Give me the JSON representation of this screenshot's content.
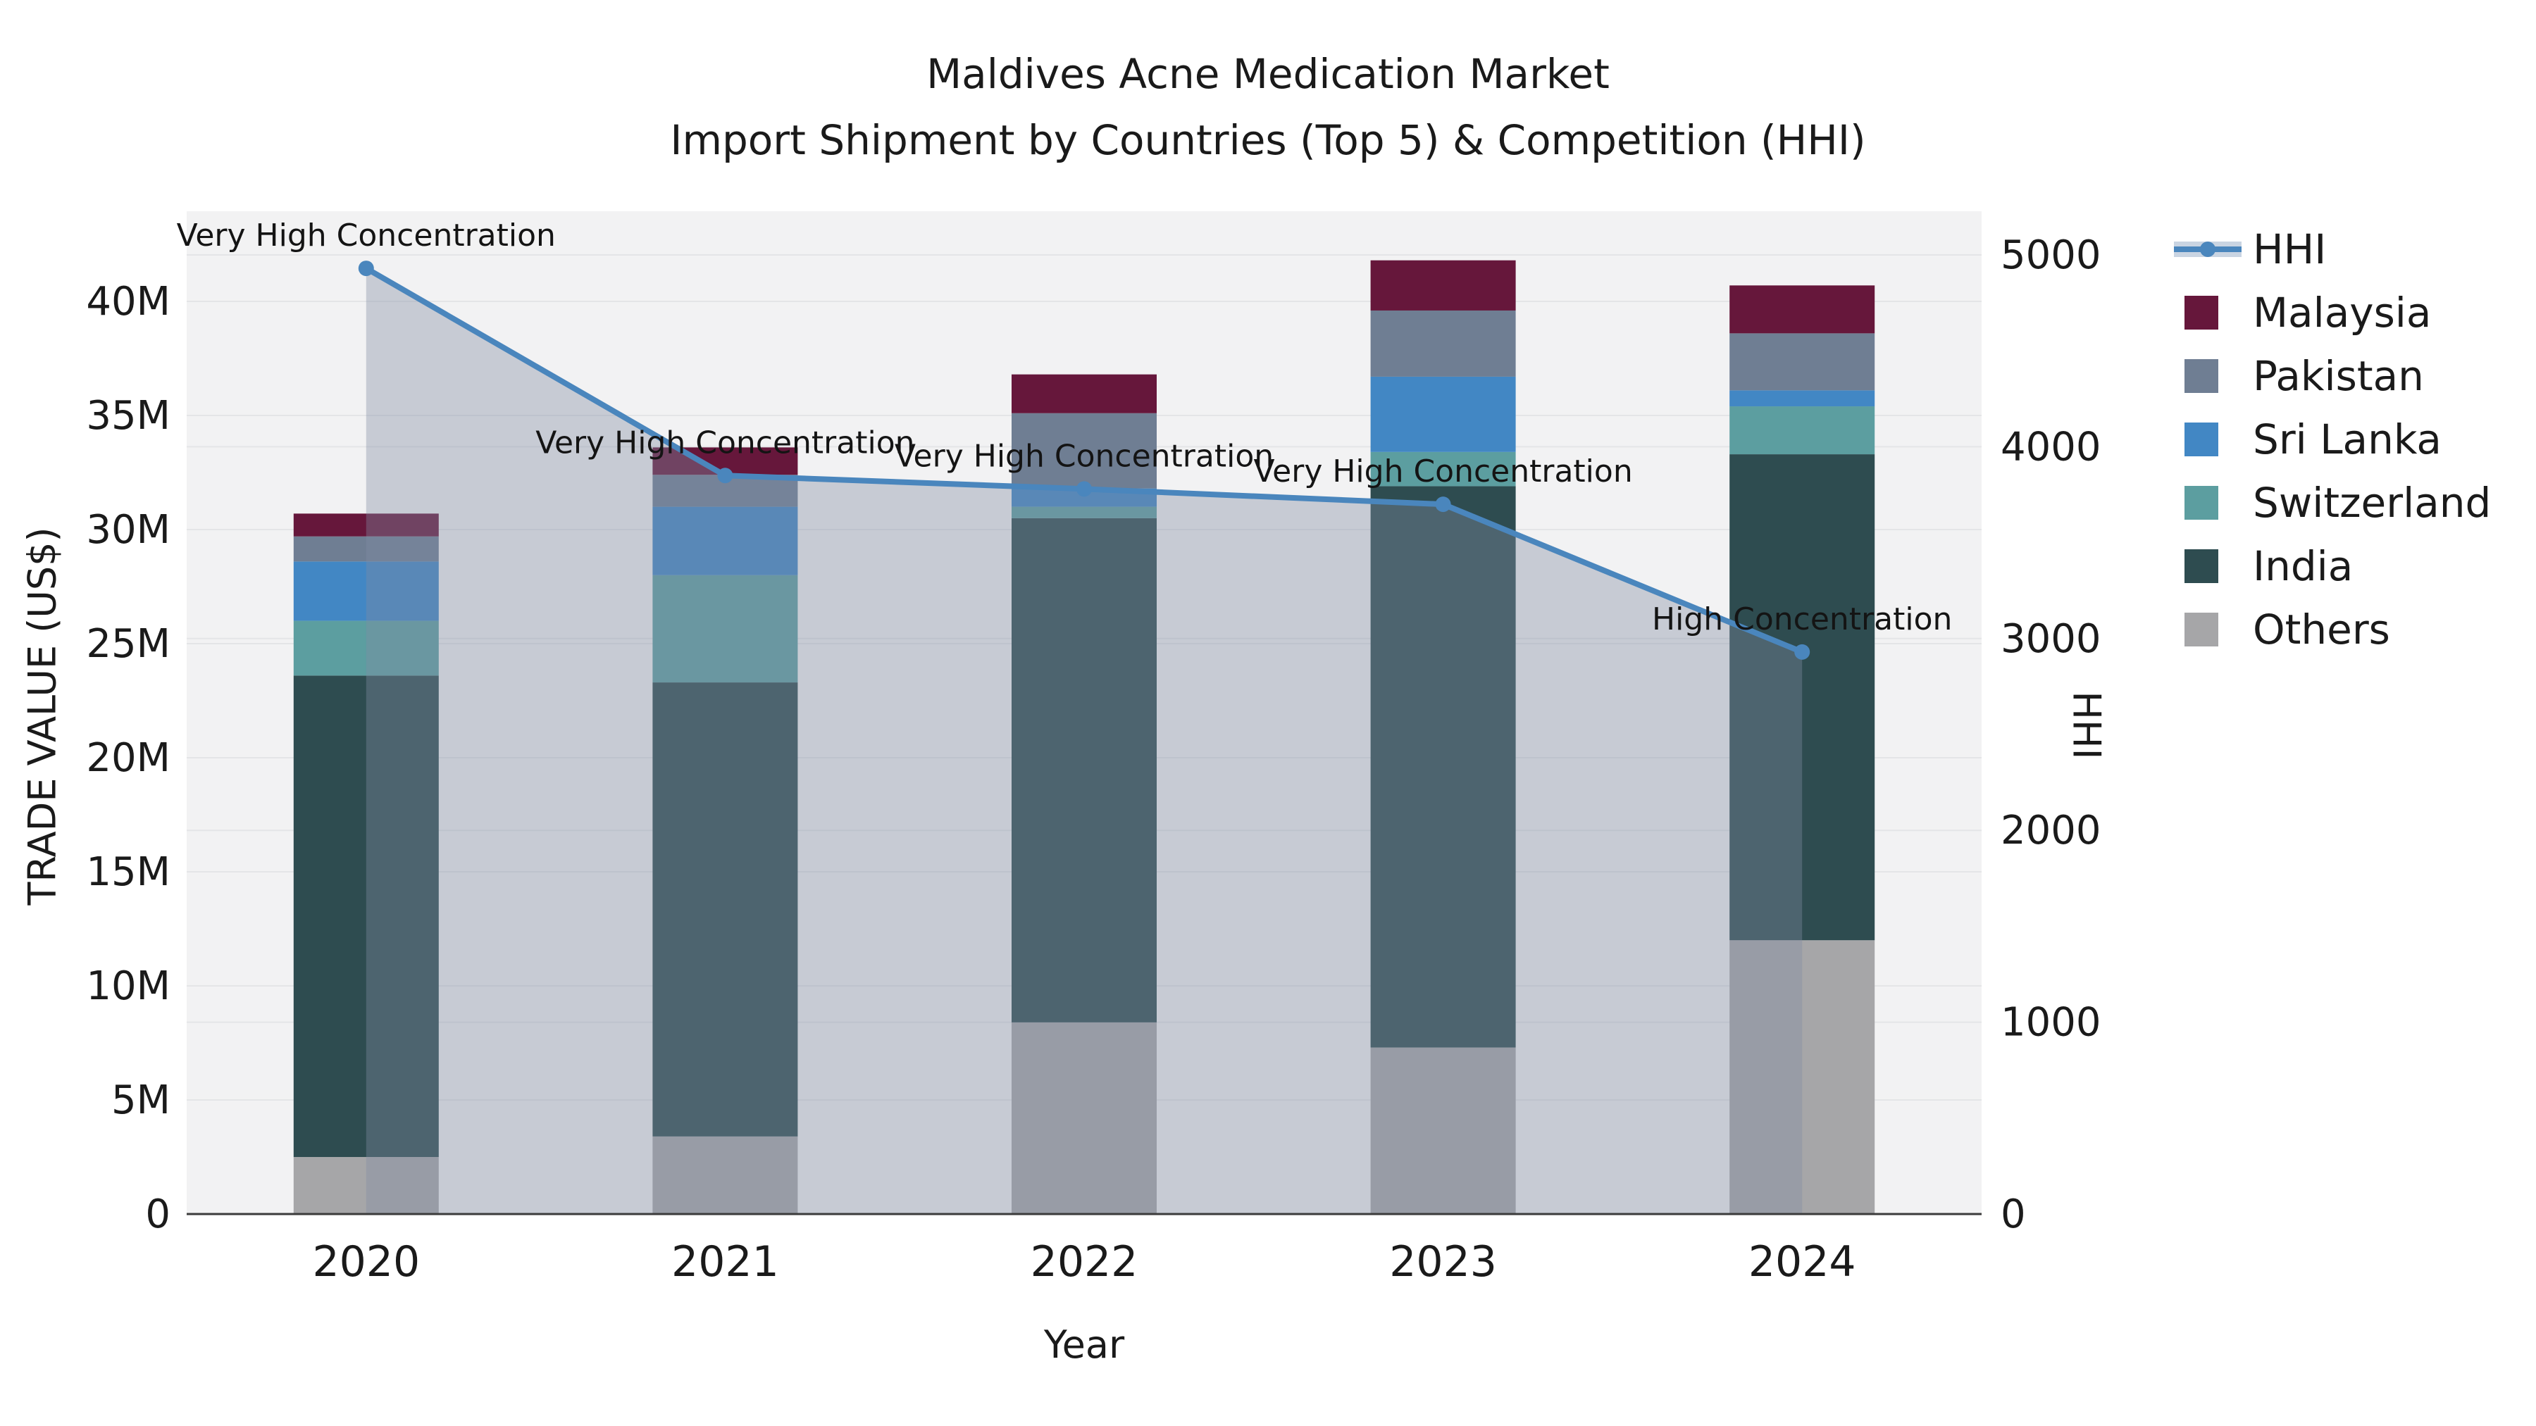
{
  "title": {
    "line1": "Maldives Acne Medication Market",
    "line2": "Import Shipment by Countries (Top 5) & Competition (HHI)"
  },
  "axis_labels": {
    "x": "Year",
    "y_left": "TRADE VALUE (US$)",
    "y_right": "HHI"
  },
  "legend": {
    "items": [
      {
        "label": "HHI",
        "type": "line",
        "color": "#4A86BD",
        "band_color": "#C9D4E2"
      },
      {
        "label": "Malaysia",
        "type": "square",
        "color": "#66173B"
      },
      {
        "label": "Pakistan",
        "type": "square",
        "color": "#6F7E93"
      },
      {
        "label": "Sri Lanka",
        "type": "square",
        "color": "#4287C4"
      },
      {
        "label": "Switzerland",
        "type": "square",
        "color": "#5C9EA0"
      },
      {
        "label": "India",
        "type": "square",
        "color": "#2E4C50"
      },
      {
        "label": "Others",
        "type": "square",
        "color": "#A6A6A8"
      }
    ]
  },
  "chart_data": {
    "type": "bar-line-combo",
    "bar_mode": "stacked",
    "categories": [
      "2020",
      "2021",
      "2022",
      "2023",
      "2024"
    ],
    "bar_value_unit": "million US$",
    "series": [
      {
        "name": "Others",
        "color": "#A6A6A8",
        "values": [
          2.5,
          3.4,
          8.4,
          7.3,
          12.0
        ]
      },
      {
        "name": "India",
        "color": "#2E4C50",
        "values": [
          21.1,
          19.9,
          22.1,
          24.6,
          21.3
        ]
      },
      {
        "name": "Switzerland",
        "color": "#5C9EA0",
        "values": [
          2.4,
          4.7,
          0.5,
          1.5,
          2.1
        ]
      },
      {
        "name": "Sri Lanka",
        "color": "#4287C4",
        "values": [
          2.6,
          3.0,
          0.8,
          3.3,
          0.7
        ]
      },
      {
        "name": "Pakistan",
        "color": "#6F7E93",
        "values": [
          1.1,
          1.4,
          3.3,
          2.9,
          2.5
        ]
      },
      {
        "name": "Malaysia",
        "color": "#66173B",
        "values": [
          1.0,
          1.2,
          1.7,
          2.2,
          2.1
        ]
      }
    ],
    "bar_totals_m": [
      30.7,
      33.6,
      36.8,
      41.8,
      40.7
    ],
    "line_series": {
      "name": "HHI",
      "color": "#4A86BD",
      "area_fill": "rgba(128,140,164,0.38)",
      "values": [
        4930,
        3850,
        3780,
        3700,
        2930
      ]
    },
    "annotations": [
      {
        "category": "2020",
        "text": "Very High Concentration"
      },
      {
        "category": "2021",
        "text": "Very High Concentration"
      },
      {
        "category": "2022",
        "text": "Very High Concentration"
      },
      {
        "category": "2023",
        "text": "Very High Concentration"
      },
      {
        "category": "2024",
        "text": "High Concentration"
      }
    ],
    "y_left_axis": {
      "label": "TRADE VALUE (US$)",
      "tick_labels": [
        "0",
        "5M",
        "10M",
        "15M",
        "20M",
        "25M",
        "30M",
        "35M",
        "40M"
      ],
      "tick_values_m": [
        0,
        5,
        10,
        15,
        20,
        25,
        30,
        35,
        40
      ],
      "range_max_m": 43.65,
      "grid": true
    },
    "y_right_axis": {
      "label": "HHI",
      "tick_labels": [
        "0",
        "1000",
        "2000",
        "3000",
        "4000",
        "5000"
      ],
      "tick_values": [
        0,
        1000,
        2000,
        3000,
        4000,
        5000
      ],
      "range_max": 5190,
      "grid": true
    },
    "x_axis": {
      "label": "Year",
      "tick_labels": [
        "2020",
        "2021",
        "2022",
        "2023",
        "2024"
      ]
    },
    "style": {
      "plot_bg": "#F2F2F3",
      "grid_color": "#E4E5E7",
      "spine_color": "#3B3B3B",
      "tick_text_color": "#1a1a1a",
      "annotation_color": "#141414"
    }
  }
}
